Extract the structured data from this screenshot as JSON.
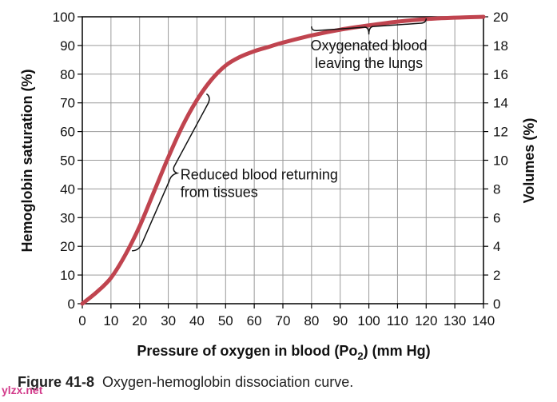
{
  "chart_data": {
    "type": "line",
    "xlabel_prefix": "Pressure of oxygen in blood (P",
    "xlabel_sub_main": "o",
    "xlabel_sub_sub": "2",
    "xlabel_suffix": ") (mm Hg)",
    "ylabel": "Hemoglobin saturation (%)",
    "y2label": "Volumes (%)",
    "xlim": [
      0,
      140
    ],
    "ylim": [
      0,
      100
    ],
    "y2lim": [
      0,
      20
    ],
    "x_ticks": [
      "0",
      "10",
      "20",
      "30",
      "40",
      "50",
      "60",
      "70",
      "80",
      "90",
      "100",
      "110",
      "120",
      "130",
      "140"
    ],
    "y_ticks": [
      "0",
      "10",
      "20",
      "30",
      "40",
      "50",
      "60",
      "70",
      "80",
      "90",
      "100"
    ],
    "y2_ticks": [
      "0",
      "2",
      "4",
      "6",
      "8",
      "10",
      "12",
      "14",
      "16",
      "18",
      "20"
    ],
    "grid": true,
    "series": [
      {
        "name": "Oxygen-hemoglobin dissociation",
        "color": "#c0444f",
        "x": [
          0,
          5,
          10,
          15,
          20,
          25,
          30,
          35,
          40,
          45,
          50,
          55,
          60,
          65,
          70,
          80,
          90,
          100,
          110,
          120,
          130,
          140
        ],
        "y": [
          0,
          4,
          9,
          17,
          27,
          39,
          51,
          62,
          71,
          78,
          83,
          86,
          88,
          89.5,
          91,
          93.5,
          95.5,
          97,
          98.3,
          99.2,
          99.7,
          100
        ]
      }
    ],
    "annotations": [
      {
        "lines": [
          "Oxygenated blood",
          "leaving the lungs"
        ],
        "bracket_x": [
          80,
          120
        ],
        "bracket_y": 95.5
      },
      {
        "lines": [
          "Reduced blood returning",
          "from tissues"
        ],
        "bracket_x": [
          19,
          45
        ],
        "bracket_y": [
          19,
          72
        ]
      }
    ]
  },
  "caption": {
    "label": "Figure 41-8",
    "text": "Oxygen-hemoglobin dissociation curve."
  },
  "watermark": "ylzx.net"
}
